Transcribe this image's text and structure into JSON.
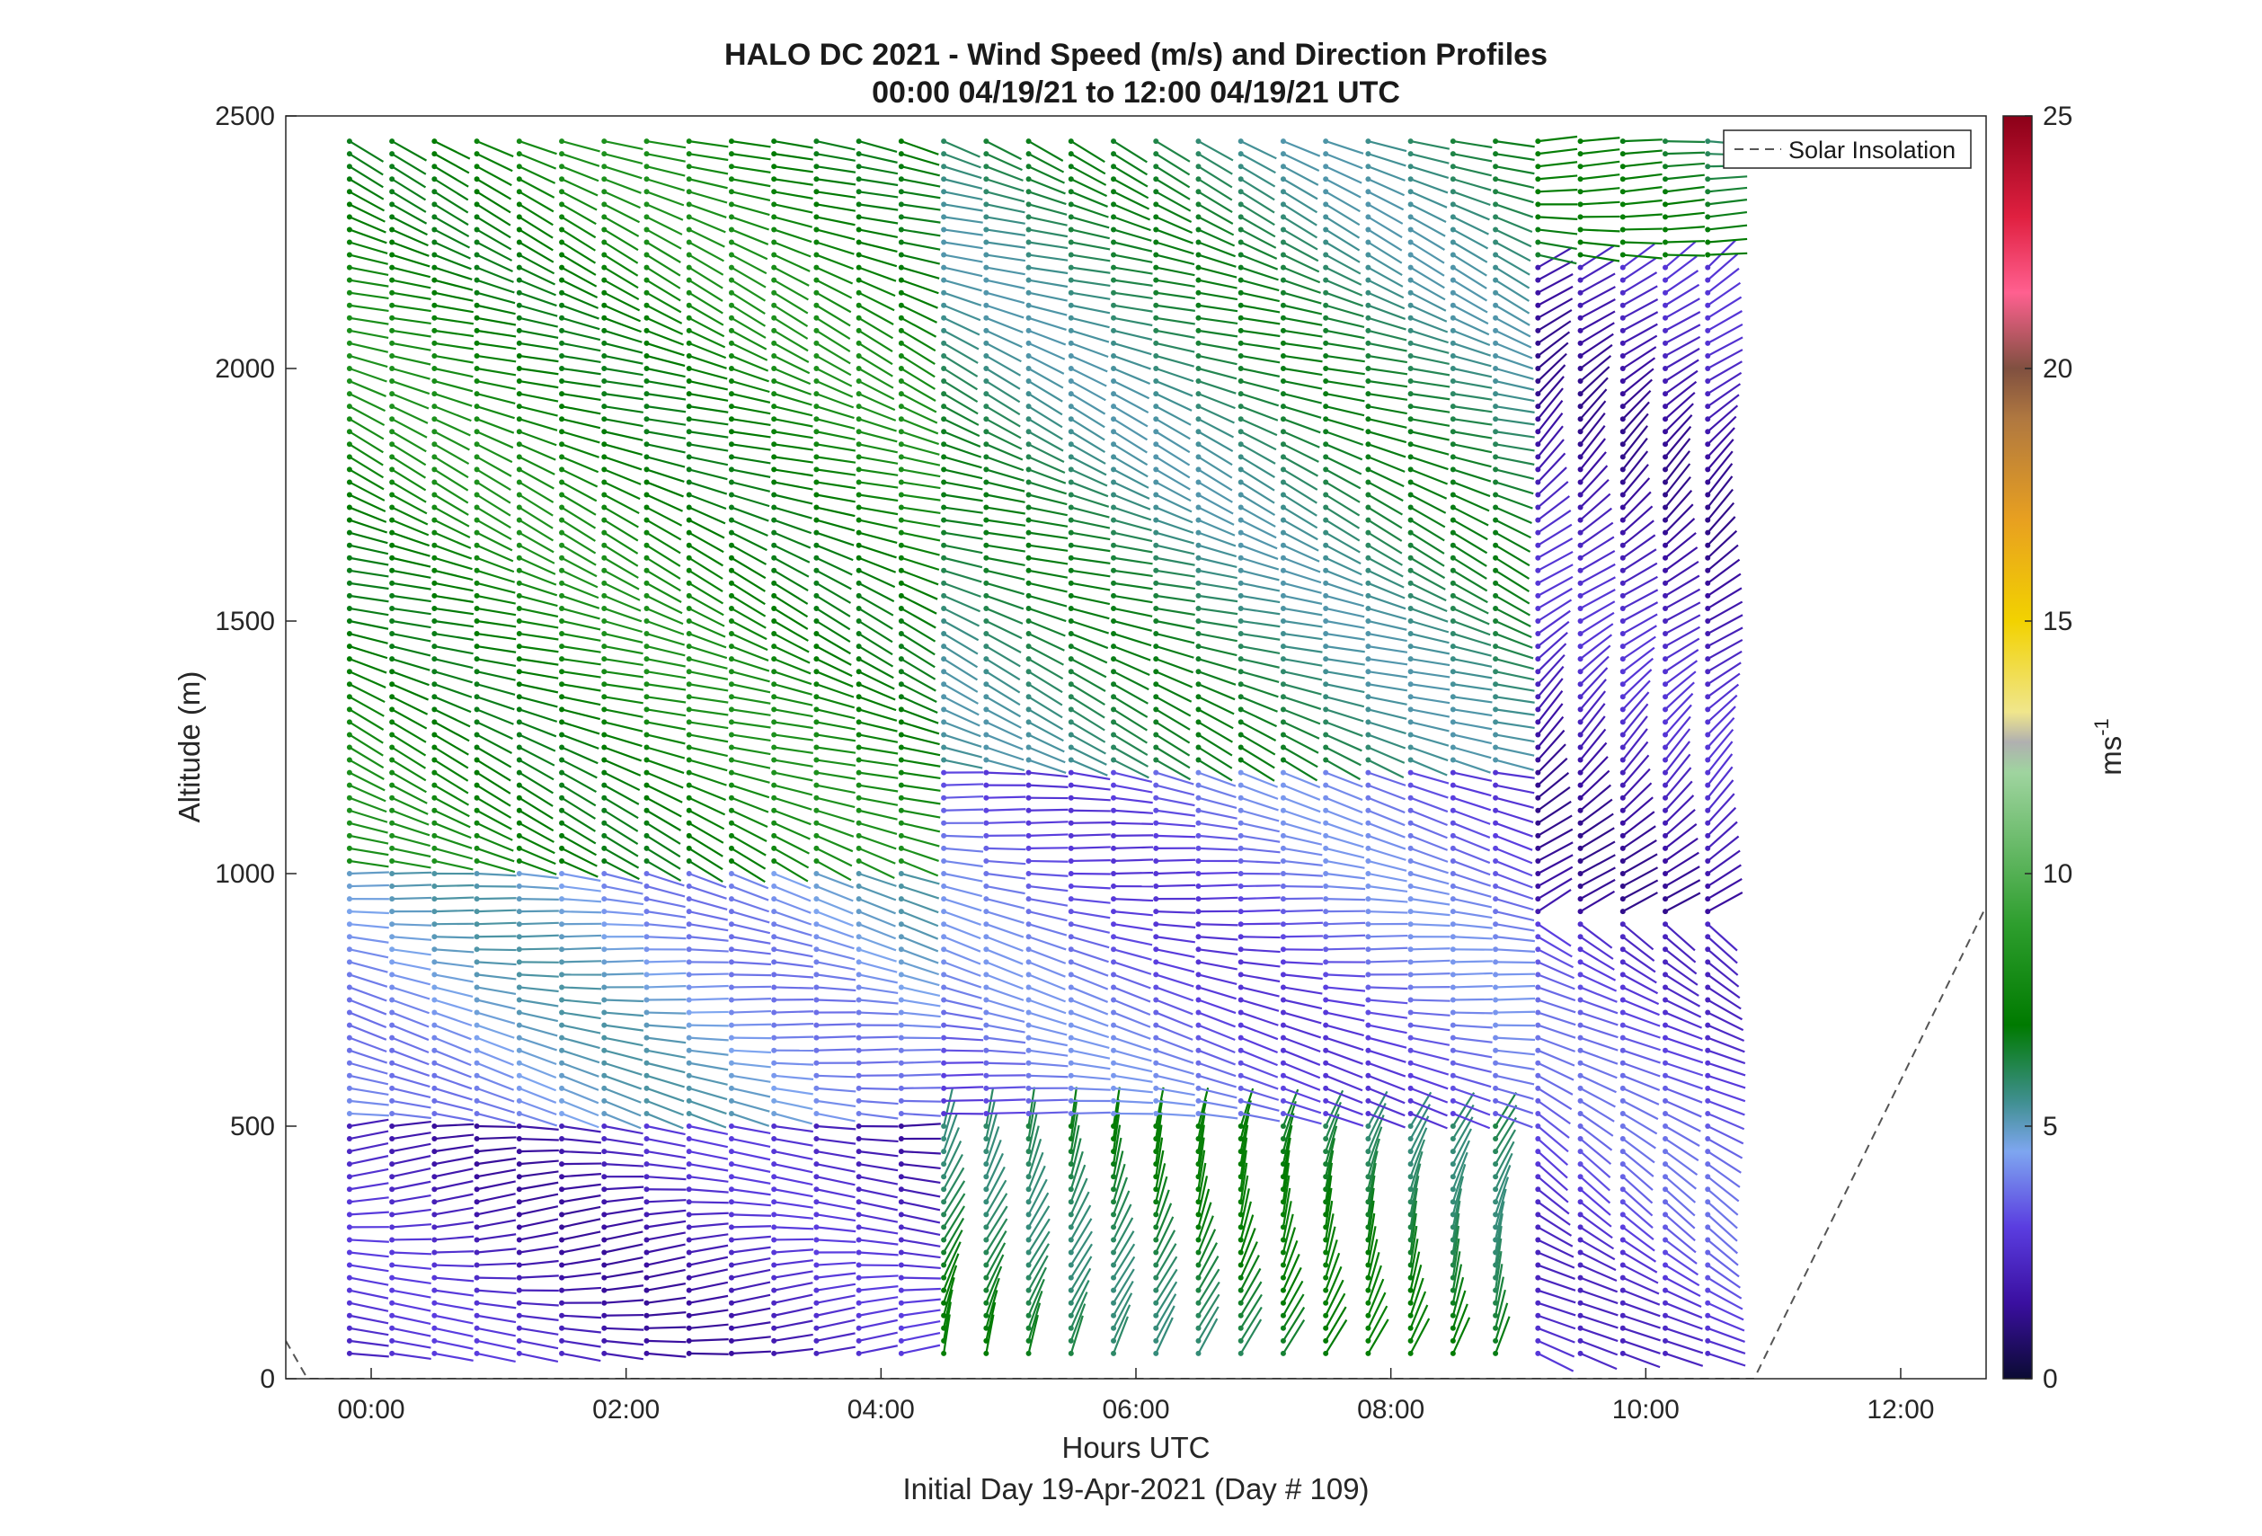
{
  "chart_data": {
    "type": "wind-barb-profile",
    "title": "HALO DC 2021 - Wind Speed (m/s) and Direction Profiles",
    "subtitle": "00:00 04/19/21 to 12:00 04/19/21  UTC",
    "xlabel": "Hours UTC",
    "xlabel2": "Initial Day 19-Apr-2021 (Day # 109)",
    "ylabel": "Altitude (m)",
    "xlim_hours": [
      -0.67,
      12.67
    ],
    "ylim": [
      0,
      2500
    ],
    "x_ticks": [
      {
        "value": 0,
        "label": "00:00"
      },
      {
        "value": 2,
        "label": "02:00"
      },
      {
        "value": 4,
        "label": "04:00"
      },
      {
        "value": 6,
        "label": "06:00"
      },
      {
        "value": 8,
        "label": "08:00"
      },
      {
        "value": 10,
        "label": "10:00"
      },
      {
        "value": 12,
        "label": "12:00"
      }
    ],
    "y_ticks": [
      {
        "value": 0,
        "label": "0"
      },
      {
        "value": 500,
        "label": "500"
      },
      {
        "value": 1000,
        "label": "1000"
      },
      {
        "value": 1500,
        "label": "1500"
      },
      {
        "value": 2000,
        "label": "2000"
      },
      {
        "value": 2500,
        "label": "2500"
      }
    ],
    "colorbar": {
      "label": "ms",
      "label_superscript": "-1",
      "min": 0,
      "max": 25,
      "ticks": [
        {
          "value": 0,
          "label": "0"
        },
        {
          "value": 5,
          "label": "5"
        },
        {
          "value": 10,
          "label": "10"
        },
        {
          "value": 15,
          "label": "15"
        },
        {
          "value": 20,
          "label": "20"
        },
        {
          "value": 25,
          "label": "25"
        }
      ],
      "stops": [
        {
          "v": 0,
          "c": "#0b0b33"
        },
        {
          "v": 1.5,
          "c": "#3a0fa0"
        },
        {
          "v": 3,
          "c": "#5a3de0"
        },
        {
          "v": 4.5,
          "c": "#7ea6f0"
        },
        {
          "v": 5.5,
          "c": "#3f8f8f"
        },
        {
          "v": 7,
          "c": "#007a00"
        },
        {
          "v": 9,
          "c": "#2e9e2e"
        },
        {
          "v": 12,
          "c": "#9fd49f"
        },
        {
          "v": 12.6,
          "c": "#b0b0b0"
        },
        {
          "v": 13.2,
          "c": "#f0e68c"
        },
        {
          "v": 15,
          "c": "#f2d200"
        },
        {
          "v": 17,
          "c": "#e8a020"
        },
        {
          "v": 19,
          "c": "#b07840"
        },
        {
          "v": 20,
          "c": "#805040"
        },
        {
          "v": 21.5,
          "c": "#ff6090"
        },
        {
          "v": 23,
          "c": "#e02040"
        },
        {
          "v": 25,
          "c": "#8b0018"
        }
      ]
    },
    "legend": {
      "entries": [
        {
          "label": "Solar Insolation",
          "style": "dashed"
        }
      ],
      "placement": "top-right"
    },
    "solar_insolation": {
      "points": [
        [
          -0.67,
          75
        ],
        [
          -0.5,
          0
        ],
        [
          10.85,
          0
        ],
        [
          12.67,
          935
        ]
      ]
    },
    "profiles": {
      "start_hour": -0.17,
      "step_hours": 0.333,
      "count": 33,
      "altitude_min": 50,
      "altitude_max": 2460,
      "altitude_step": 25,
      "description_bands": [
        {
          "time": [
            -0.17,
            4.2
          ],
          "alt": [
            50,
            500
          ],
          "speed": 2.2,
          "dir_deg": 270
        },
        {
          "time": [
            -0.17,
            4.2
          ],
          "alt": [
            500,
            1000
          ],
          "speed": 4.5,
          "dir_deg": 280
        },
        {
          "time": [
            -0.17,
            4.2
          ],
          "alt": [
            1000,
            2460
          ],
          "speed": 7.5,
          "dir_deg": 290
        },
        {
          "time": [
            4.4,
            8.9
          ],
          "alt": [
            50,
            500
          ],
          "speed": 6.5,
          "dir_deg": 200
        },
        {
          "time": [
            4.4,
            8.9
          ],
          "alt": [
            500,
            1200
          ],
          "speed": 3.5,
          "dir_deg": 280
        },
        {
          "time": [
            4.4,
            8.9
          ],
          "alt": [
            1200,
            2460
          ],
          "speed": 6.0,
          "dir_deg": 290
        },
        {
          "time": [
            9.0,
            11.8
          ],
          "alt": [
            50,
            900
          ],
          "speed": 3.0,
          "dir_deg": 300
        },
        {
          "time": [
            9.0,
            11.8
          ],
          "alt": [
            900,
            2200
          ],
          "speed": 2.0,
          "dir_deg": 230
        },
        {
          "time": [
            9.0,
            11.8
          ],
          "alt": [
            2200,
            2460
          ],
          "speed": 6.5,
          "dir_deg": 275
        }
      ]
    }
  }
}
